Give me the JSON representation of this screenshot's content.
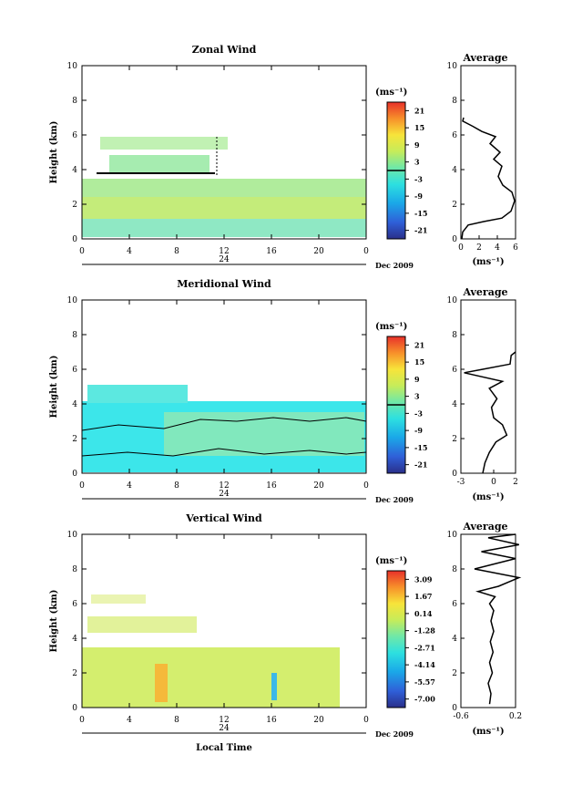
{
  "chart_data": [
    {
      "type": "heatmap",
      "title": "Zonal Wind",
      "ylabel": "Height (km)",
      "ylim": [
        0,
        10
      ],
      "yticks": [
        "0",
        "2",
        "4",
        "6",
        "8",
        "10"
      ],
      "xlim": [
        0,
        24
      ],
      "xticks": [
        "0",
        "4",
        "8",
        "12",
        "16",
        "20",
        "0"
      ],
      "date_tick": "24",
      "date_label": "Dec 2009",
      "colorbar": {
        "unit": "(ms⁻¹)",
        "ticks": [
          "21",
          "15",
          "9",
          "3",
          "-3",
          "-9",
          "-15",
          "-21"
        ]
      },
      "avg": {
        "title": "Average",
        "xunit": "(ms⁻¹)",
        "xlim": [
          0,
          6
        ],
        "xticks": [
          "0",
          "2",
          "4",
          "6"
        ],
        "ylim": [
          0,
          10
        ],
        "yticks": [
          "0",
          "2",
          "4",
          "6",
          "8",
          "10"
        ],
        "profile": [
          [
            0.1,
            0
          ],
          [
            0.2,
            0.4
          ],
          [
            0.8,
            0.8
          ],
          [
            2.5,
            1.0
          ],
          [
            4.5,
            1.2
          ],
          [
            5.5,
            1.6
          ],
          [
            5.9,
            2.2
          ],
          [
            5.6,
            2.7
          ],
          [
            4.6,
            3.1
          ],
          [
            4.1,
            3.6
          ],
          [
            4.5,
            4.2
          ],
          [
            3.6,
            4.6
          ],
          [
            4.3,
            5.0
          ],
          [
            3.2,
            5.5
          ],
          [
            3.8,
            5.9
          ],
          [
            2.3,
            6.2
          ],
          [
            1.3,
            6.5
          ],
          [
            0.2,
            6.8
          ],
          [
            0.3,
            7.0
          ]
        ]
      }
    },
    {
      "type": "heatmap",
      "title": "Meridional Wind",
      "ylabel": "Height (km)",
      "ylim": [
        0,
        10
      ],
      "yticks": [
        "0",
        "2",
        "4",
        "6",
        "8",
        "10"
      ],
      "xlim": [
        0,
        24
      ],
      "xticks": [
        "0",
        "4",
        "8",
        "12",
        "16",
        "20",
        "0"
      ],
      "date_tick": "24",
      "date_label": "Dec 2009",
      "colorbar": {
        "unit": "(ms⁻¹)",
        "ticks": [
          "21",
          "15",
          "9",
          "3",
          "-3",
          "-9",
          "-15",
          "-21"
        ]
      },
      "avg": {
        "title": "Average",
        "xunit": "(ms⁻¹)",
        "xlim": [
          -3,
          2
        ],
        "xticks": [
          "-3",
          "0",
          "2"
        ],
        "ylim": [
          0,
          10
        ],
        "yticks": [
          "0",
          "2",
          "4",
          "6",
          "8",
          "10"
        ],
        "profile": [
          [
            -1.0,
            0
          ],
          [
            -0.8,
            0.6
          ],
          [
            -0.4,
            1.2
          ],
          [
            0.2,
            1.8
          ],
          [
            1.2,
            2.2
          ],
          [
            0.8,
            2.8
          ],
          [
            0.0,
            3.2
          ],
          [
            -0.2,
            3.8
          ],
          [
            0.3,
            4.3
          ],
          [
            -0.4,
            4.9
          ],
          [
            0.8,
            5.3
          ],
          [
            -2.7,
            5.8
          ],
          [
            -1.0,
            6.0
          ],
          [
            1.5,
            6.3
          ],
          [
            1.6,
            6.8
          ],
          [
            2.0,
            7.0
          ]
        ]
      }
    },
    {
      "type": "heatmap",
      "title": "Vertical Wind",
      "xlabel": "Local Time",
      "ylabel": "Height (km)",
      "ylim": [
        0,
        10
      ],
      "yticks": [
        "0",
        "2",
        "4",
        "6",
        "8",
        "10"
      ],
      "xlim": [
        0,
        24
      ],
      "xticks": [
        "0",
        "4",
        "8",
        "12",
        "16",
        "20",
        "0"
      ],
      "date_tick": "24",
      "date_label": "Dec 2009",
      "colorbar": {
        "unit": "(ms⁻¹)",
        "ticks": [
          "3.09",
          "1.67",
          "0.14",
          "-1.28",
          "-2.71",
          "-4.14",
          "-5.57",
          "-7.00"
        ]
      },
      "avg": {
        "title": "Average",
        "xunit": "(ms⁻¹)",
        "xlim": [
          -0.6,
          0.2
        ],
        "xticks": [
          "-0.6",
          "0.2"
        ],
        "ylim": [
          0,
          10
        ],
        "yticks": [
          "0",
          "2",
          "4",
          "6",
          "8",
          "10"
        ],
        "profile": [
          [
            -0.18,
            0.2
          ],
          [
            -0.16,
            0.8
          ],
          [
            -0.2,
            1.4
          ],
          [
            -0.14,
            2.0
          ],
          [
            -0.18,
            2.6
          ],
          [
            -0.13,
            3.2
          ],
          [
            -0.17,
            3.8
          ],
          [
            -0.12,
            4.4
          ],
          [
            -0.16,
            5.0
          ],
          [
            -0.12,
            5.6
          ],
          [
            -0.18,
            6.0
          ],
          [
            -0.1,
            6.4
          ],
          [
            -0.35,
            6.7
          ],
          [
            -0.05,
            7.0
          ],
          [
            0.25,
            7.5
          ],
          [
            -0.4,
            8.0
          ],
          [
            0.2,
            8.6
          ],
          [
            -0.3,
            9.0
          ],
          [
            0.25,
            9.4
          ],
          [
            -0.2,
            9.8
          ],
          [
            0.2,
            10.0
          ]
        ]
      }
    }
  ]
}
